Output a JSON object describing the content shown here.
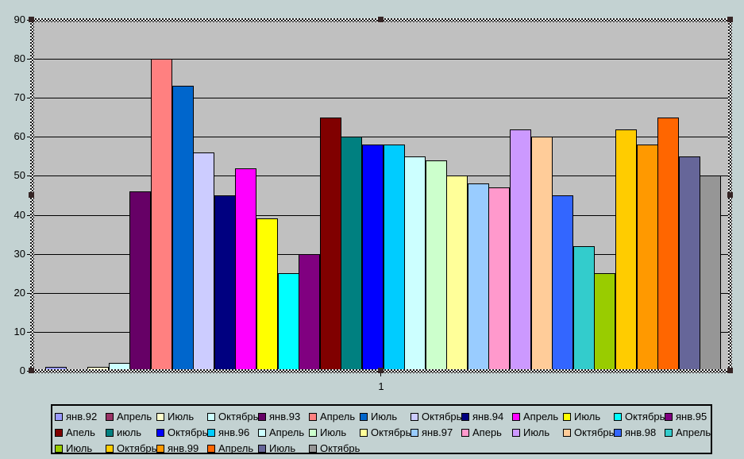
{
  "chart_data": {
    "type": "bar",
    "title": "",
    "xlabel": "",
    "ylabel": "",
    "x_category_label": "1",
    "ylim": [
      0,
      90
    ],
    "y_ticks": [
      0,
      10,
      20,
      30,
      40,
      50,
      60,
      70,
      80,
      90
    ],
    "grid": "horizontal",
    "legend_position": "bottom",
    "legend_rows": [
      13,
      13,
      6
    ],
    "series": [
      {
        "name": "янв.92",
        "color": "#9999FF",
        "value": 1
      },
      {
        "name": "Апрель",
        "color": "#993366",
        "value": 0
      },
      {
        "name": "Июль",
        "color": "#FFFFCC",
        "value": 1
      },
      {
        "name": "Октябрь",
        "color": "#CCFFFF",
        "value": 2
      },
      {
        "name": "янв.93",
        "color": "#660066",
        "value": 46
      },
      {
        "name": "Апрель",
        "color": "#FF8080",
        "value": 80
      },
      {
        "name": "Июль",
        "color": "#0066CC",
        "value": 73
      },
      {
        "name": "Октябрь",
        "color": "#CCCCFF",
        "value": 56
      },
      {
        "name": "янв.94",
        "color": "#000080",
        "value": 45
      },
      {
        "name": "Апрель",
        "color": "#FF00FF",
        "value": 52
      },
      {
        "name": "Июль",
        "color": "#FFFF00",
        "value": 39
      },
      {
        "name": "Октябрь",
        "color": "#00FFFF",
        "value": 25
      },
      {
        "name": "янв.95",
        "color": "#800080",
        "value": 30
      },
      {
        "name": "Апель",
        "color": "#800000",
        "value": 65
      },
      {
        "name": "июль",
        "color": "#008080",
        "value": 60
      },
      {
        "name": "Октябрь",
        "color": "#0000FF",
        "value": 58
      },
      {
        "name": "янв.96",
        "color": "#00CCFF",
        "value": 58
      },
      {
        "name": "Апрель",
        "color": "#CCFFFF",
        "value": 55
      },
      {
        "name": "Июль",
        "color": "#CCFFCC",
        "value": 54
      },
      {
        "name": "Октябрь",
        "color": "#FFFF99",
        "value": 50
      },
      {
        "name": "янв.97",
        "color": "#99CCFF",
        "value": 48
      },
      {
        "name": "Аперь",
        "color": "#FF99CC",
        "value": 47
      },
      {
        "name": "Июль",
        "color": "#CC99FF",
        "value": 62
      },
      {
        "name": "Октябрь",
        "color": "#FFCC99",
        "value": 60
      },
      {
        "name": "янв.98",
        "color": "#3366FF",
        "value": 45
      },
      {
        "name": "Апрель",
        "color": "#33CCCC",
        "value": 32
      },
      {
        "name": "Июль",
        "color": "#99CC00",
        "value": 25
      },
      {
        "name": "Октябрь",
        "color": "#FFCC00",
        "value": 62
      },
      {
        "name": "янв.99",
        "color": "#FF9900",
        "value": 58
      },
      {
        "name": "Апрель",
        "color": "#FF6600",
        "value": 65
      },
      {
        "name": "Июль",
        "color": "#666699",
        "value": 55
      },
      {
        "name": "Октябрь",
        "color": "#969696",
        "value": 50
      }
    ],
    "colors": {
      "page_background": "#C3D2D2",
      "plot_background": "#C0C0C0",
      "gridline": "#000000",
      "bar_outline": "#000000",
      "text": "#000000"
    },
    "selection": {
      "state": "plot-area-selected",
      "handles": 8
    }
  }
}
